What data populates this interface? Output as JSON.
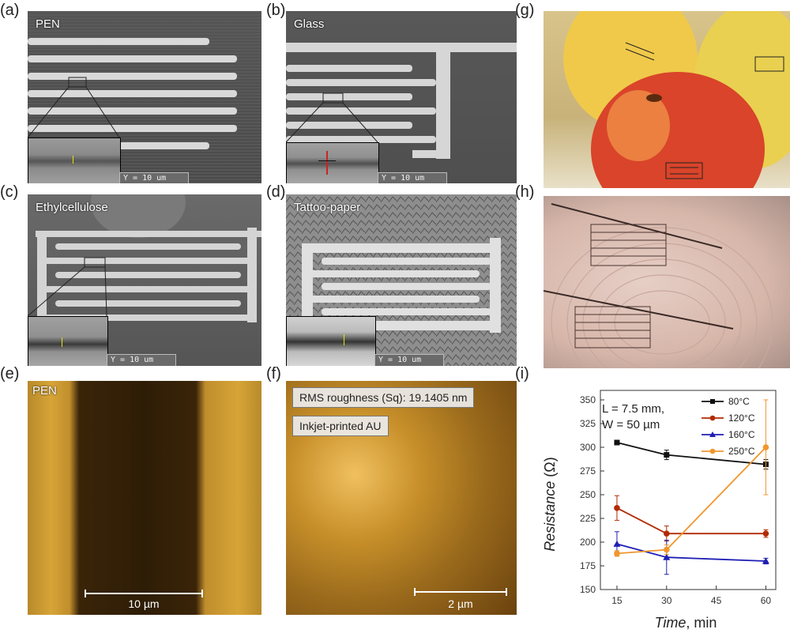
{
  "panels": {
    "a": {
      "label": "(a)",
      "caption": "PEN",
      "ruler": "Y  = 10 um"
    },
    "b": {
      "label": "(b)",
      "caption": "Glass",
      "ruler": "Y  = 10 um"
    },
    "c": {
      "label": "(c)",
      "caption": "Ethylcellulose",
      "ruler": "Y  = 10 um"
    },
    "d": {
      "label": "(d)",
      "caption": "Tattoo-paper",
      "ruler": "Y  = 10 um"
    },
    "e": {
      "label": "(e)",
      "caption": "PEN",
      "scale": "10 µm"
    },
    "f": {
      "label": "(f)",
      "box1": "RMS roughness (Sq): 19.1405 nm",
      "box2": "Inkjet-printed AU",
      "scale": "2 µm"
    },
    "g": {
      "label": "(g)"
    },
    "h": {
      "label": "(h)"
    },
    "i": {
      "label": "(i)"
    }
  },
  "colors": {
    "c80": "#111111",
    "c120": "#b22a00",
    "c160": "#1f1fb4",
    "c250": "#f0962e"
  },
  "chart_data": {
    "type": "line",
    "annotation_line1": "L = 7.5 mm,",
    "annotation_line2": "W = 50 µm",
    "xlabel_italic": "Time",
    "xlabel_unit": ", min",
    "ylabel_italic": "Resistance",
    "ylabel_unit": " (Ω)",
    "xlim": [
      10,
      63
    ],
    "ylim": [
      150,
      360
    ],
    "xticks": [
      15,
      30,
      45,
      60
    ],
    "yticks": [
      150,
      175,
      200,
      225,
      250,
      275,
      300,
      325,
      350
    ],
    "legend_position": "top-right",
    "series": [
      {
        "name": "80°C",
        "marker": "square",
        "color": "#111111",
        "x": [
          15,
          30,
          60
        ],
        "y": [
          305,
          292,
          282
        ],
        "err": [
          2,
          5,
          5
        ]
      },
      {
        "name": "120°C",
        "marker": "circle",
        "color": "#b22a00",
        "x": [
          15,
          30,
          60
        ],
        "y": [
          236,
          209,
          209
        ],
        "err": [
          13,
          8,
          4
        ]
      },
      {
        "name": "160°C",
        "marker": "triangle",
        "color": "#1f1fb4",
        "x": [
          15,
          30,
          60
        ],
        "y": [
          198,
          184,
          180
        ],
        "err": [
          13,
          18,
          3
        ]
      },
      {
        "name": "250°C",
        "marker": "circle",
        "color": "#f0962e",
        "x": [
          15,
          30,
          60
        ],
        "y": [
          188,
          192,
          300
        ],
        "err": [
          3,
          5,
          50
        ]
      }
    ]
  }
}
